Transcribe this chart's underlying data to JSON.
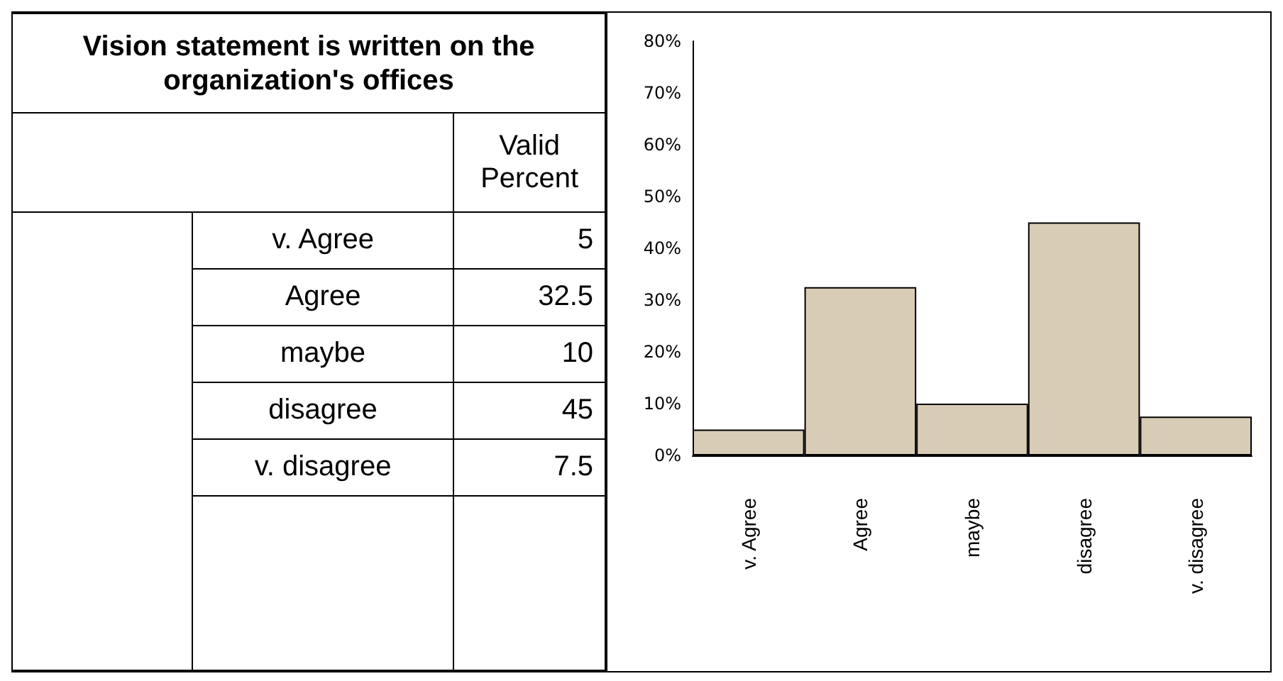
{
  "chart_data": [
    {
      "type": "other",
      "title": "Vision statement is written on the organization's offices",
      "ylabel": "Valid Percent",
      "categories": [
        "v. Agree",
        "Agree",
        "maybe",
        "disagree",
        "v. disagree"
      ],
      "value_labels": [
        "5",
        "32.5",
        "10",
        "45",
        "7.5"
      ]
    },
    {
      "type": "bar",
      "categories": [
        "v. Agree",
        "Agree",
        "maybe",
        "disagree",
        "v. disagree"
      ],
      "values": [
        5,
        32.5,
        10,
        45,
        7.5
      ],
      "color": "#d9ccb6",
      "ylim": [
        0,
        80
      ],
      "yticks": [
        {
          "value": 0,
          "label": "0%"
        },
        {
          "value": 10,
          "label": "10%"
        },
        {
          "value": 20,
          "label": "20%"
        },
        {
          "value": 30,
          "label": "30%"
        },
        {
          "value": 40,
          "label": "40%"
        },
        {
          "value": 50,
          "label": "50%"
        },
        {
          "value": 60,
          "label": "60%"
        },
        {
          "value": 70,
          "label": "70%"
        },
        {
          "value": 80,
          "label": "80%"
        }
      ],
      "grid": false
    }
  ]
}
